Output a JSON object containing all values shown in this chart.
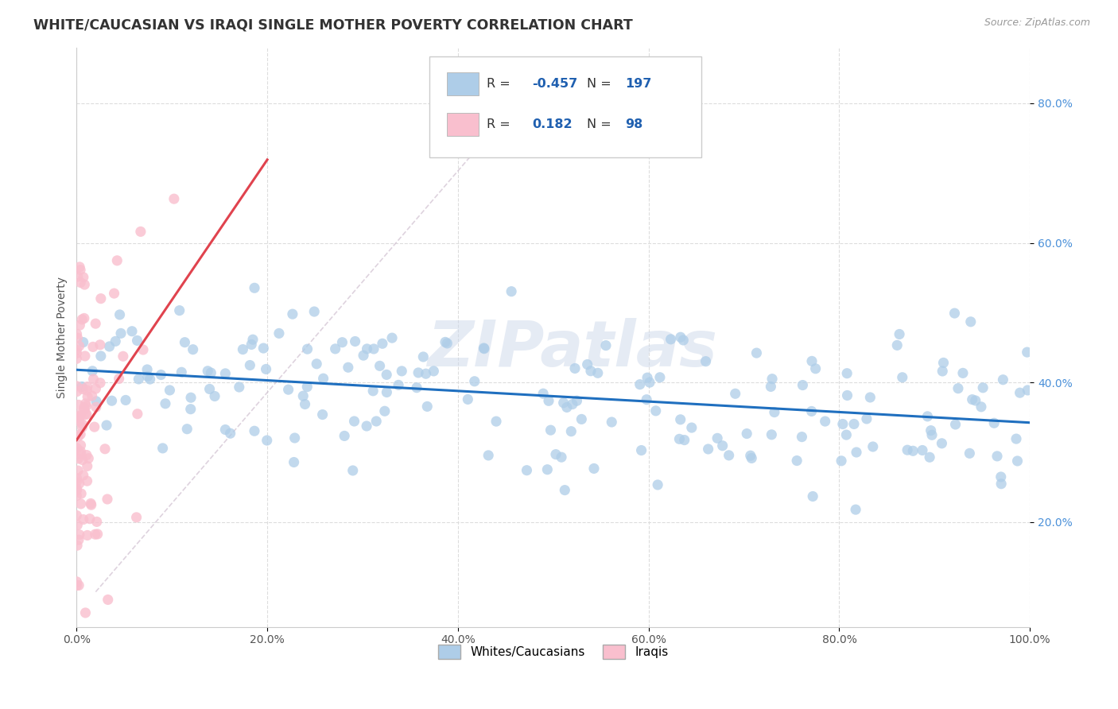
{
  "title": "WHITE/CAUCASIAN VS IRAQI SINGLE MOTHER POVERTY CORRELATION CHART",
  "source": "Source: ZipAtlas.com",
  "ylabel": "Single Mother Poverty",
  "xlim": [
    0,
    1
  ],
  "ylim": [
    0.05,
    0.88
  ],
  "x_tick_labels": [
    "0.0%",
    "20.0%",
    "40.0%",
    "60.0%",
    "80.0%",
    "100.0%"
  ],
  "x_tick_vals": [
    0.0,
    0.2,
    0.4,
    0.6,
    0.8,
    1.0
  ],
  "y_tick_labels": [
    "20.0%",
    "40.0%",
    "60.0%",
    "80.0%"
  ],
  "y_tick_vals": [
    0.2,
    0.4,
    0.6,
    0.8
  ],
  "blue_scatter_color": "#aecde8",
  "pink_scatter_color": "#f9bfce",
  "blue_line_color": "#1f6fbf",
  "pink_line_color": "#e0434e",
  "diag_line_color": "#d0c0d0",
  "R_blue": -0.457,
  "N_blue": 197,
  "R_pink": 0.182,
  "N_pink": 98,
  "legend_label_blue": "Whites/Caucasians",
  "legend_label_pink": "Iraqis",
  "watermark": "ZIPatlas",
  "title_color": "#333333",
  "title_fontsize": 12.5,
  "axis_label_fontsize": 10,
  "tick_fontsize": 10,
  "right_tick_color": "#4a90d9",
  "grid_color": "#dddddd",
  "seed": 42
}
